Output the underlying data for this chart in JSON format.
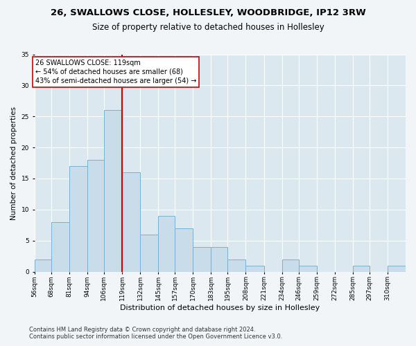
{
  "title1": "26, SWALLOWS CLOSE, HOLLESLEY, WOODBRIDGE, IP12 3RW",
  "title2": "Size of property relative to detached houses in Hollesley",
  "xlabel": "Distribution of detached houses by size in Hollesley",
  "ylabel": "Number of detached properties",
  "bin_labels": [
    "56sqm",
    "68sqm",
    "81sqm",
    "94sqm",
    "106sqm",
    "119sqm",
    "132sqm",
    "145sqm",
    "157sqm",
    "170sqm",
    "183sqm",
    "195sqm",
    "208sqm",
    "221sqm",
    "234sqm",
    "246sqm",
    "259sqm",
    "272sqm",
    "285sqm",
    "297sqm",
    "310sqm"
  ],
  "bin_edges": [
    56,
    68,
    81,
    94,
    106,
    119,
    132,
    145,
    157,
    170,
    183,
    195,
    208,
    221,
    234,
    246,
    259,
    272,
    285,
    297,
    310,
    323
  ],
  "bar_heights": [
    2,
    8,
    17,
    18,
    26,
    16,
    6,
    9,
    7,
    4,
    4,
    2,
    1,
    0,
    2,
    1,
    0,
    0,
    1,
    0,
    1
  ],
  "bar_color": "#c9dcea",
  "bar_edge_color": "#7ab0d0",
  "vline_x": 119,
  "vline_color": "#cc0000",
  "annotation_text": "26 SWALLOWS CLOSE: 119sqm\n← 54% of detached houses are smaller (68)\n43% of semi-detached houses are larger (54) →",
  "annotation_box_color": "#cc0000",
  "ylim": [
    0,
    35
  ],
  "yticks": [
    0,
    5,
    10,
    15,
    20,
    25,
    30,
    35
  ],
  "footnote1": "Contains HM Land Registry data © Crown copyright and database right 2024.",
  "footnote2": "Contains public sector information licensed under the Open Government Licence v3.0.",
  "bg_color": "#f2f5f8",
  "plot_bg_color": "#dce8f0",
  "grid_color": "#ffffff",
  "title1_fontsize": 9.5,
  "title2_fontsize": 8.5,
  "xlabel_fontsize": 8,
  "ylabel_fontsize": 7.5,
  "tick_fontsize": 6.5,
  "footnote_fontsize": 6,
  "ann_fontsize": 7
}
